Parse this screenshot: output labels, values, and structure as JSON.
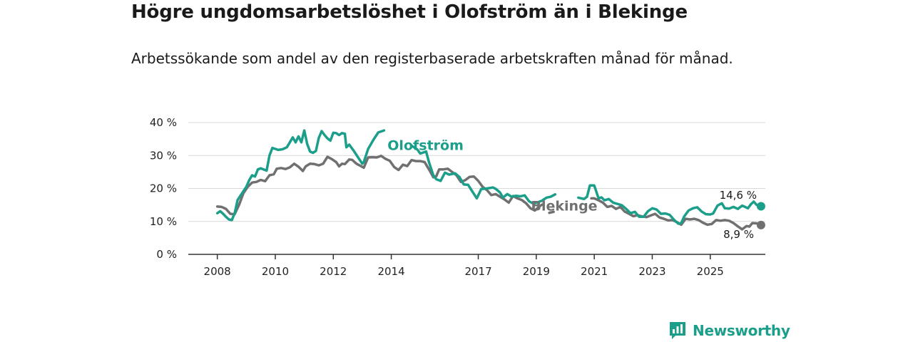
{
  "header": {
    "title": "Högre ungdomsarbetslöshet i Olofström än i Blekinge",
    "subtitle": "Arbetssökande som andel av den registerbaserade arbetskraften månad för månad."
  },
  "brand": {
    "name": "Newsworthy"
  },
  "colors": {
    "olofstrom": "#1b9e8a",
    "blekinge": "#707070",
    "grid": "#d9d9d9",
    "axis": "#333333"
  },
  "chart_data": {
    "type": "line",
    "title": "Högre ungdomsarbetslöshet i Olofström än i Blekinge",
    "xlabel": "",
    "ylabel": "",
    "xlim": [
      2007,
      2026.9
    ],
    "ylim": [
      0,
      40
    ],
    "y_ticks": [
      0,
      10,
      20,
      30,
      40
    ],
    "y_tick_labels": [
      "0 %",
      "10 %",
      "20 %",
      "30 %",
      "40 %"
    ],
    "x_ticks": [
      2008,
      2010,
      2012,
      2014,
      2017,
      2019,
      2021,
      2023,
      2025
    ],
    "x_tick_labels": [
      "2008",
      "2010",
      "2012",
      "2014",
      "2017",
      "2019",
      "2021",
      "2023",
      "2025"
    ],
    "grid": "horizontal",
    "series": [
      {
        "name": "Olofström",
        "label": "Olofström",
        "end_label": "14,6 %",
        "end_value": 14.6,
        "points": [
          [
            2008.0,
            12.5
          ],
          [
            2008.1,
            13.1
          ],
          [
            2008.2,
            12.3
          ],
          [
            2008.3,
            11.4
          ],
          [
            2008.4,
            10.6
          ],
          [
            2008.5,
            10.4
          ],
          [
            2008.6,
            12.5
          ],
          [
            2008.7,
            16.5
          ],
          [
            2008.85,
            18.5
          ],
          [
            2009.0,
            20.5
          ],
          [
            2009.1,
            22.5
          ],
          [
            2009.2,
            24.0
          ],
          [
            2009.3,
            23.6
          ],
          [
            2009.4,
            25.8
          ],
          [
            2009.5,
            26.1
          ],
          [
            2009.7,
            25.4
          ],
          [
            2009.8,
            30.0
          ],
          [
            2009.9,
            32.3
          ],
          [
            2010.0,
            32.0
          ],
          [
            2010.1,
            31.7
          ],
          [
            2010.25,
            31.9
          ],
          [
            2010.4,
            32.5
          ],
          [
            2010.5,
            34.0
          ],
          [
            2010.6,
            35.5
          ],
          [
            2010.7,
            34.0
          ],
          [
            2010.8,
            35.8
          ],
          [
            2010.9,
            34.0
          ],
          [
            2011.0,
            37.6
          ],
          [
            2011.1,
            33.5
          ],
          [
            2011.2,
            31.2
          ],
          [
            2011.3,
            30.8
          ],
          [
            2011.4,
            31.4
          ],
          [
            2011.5,
            35.3
          ],
          [
            2011.6,
            37.4
          ],
          [
            2011.7,
            36.2
          ],
          [
            2011.8,
            35.2
          ],
          [
            2011.9,
            34.5
          ],
          [
            2012.0,
            36.9
          ],
          [
            2012.1,
            36.8
          ],
          [
            2012.2,
            36.2
          ],
          [
            2012.3,
            36.8
          ],
          [
            2012.4,
            36.6
          ],
          [
            2012.45,
            32.5
          ],
          [
            2012.55,
            33.3
          ],
          [
            2012.7,
            31.5
          ],
          [
            2012.85,
            29.5
          ],
          [
            2013.0,
            27.5
          ],
          [
            2013.05,
            28.0
          ],
          [
            2013.2,
            32.0
          ],
          [
            2013.4,
            35.0
          ],
          [
            2013.55,
            37.0
          ],
          [
            2013.75,
            37.6
          ],
          [
            2013.78,
            null
          ],
          [
            2014.65,
            null
          ],
          [
            2014.7,
            33.0
          ],
          [
            2014.9,
            31.8
          ],
          [
            2015.0,
            30.6
          ],
          [
            2015.2,
            31.2
          ],
          [
            2015.3,
            28.0
          ],
          [
            2015.45,
            24.0
          ],
          [
            2015.55,
            22.8
          ],
          [
            2015.7,
            22.3
          ],
          [
            2015.85,
            24.8
          ],
          [
            2016.0,
            24.2
          ],
          [
            2016.2,
            24.6
          ],
          [
            2016.35,
            23.5
          ],
          [
            2016.5,
            21.2
          ],
          [
            2016.65,
            21.1
          ],
          [
            2016.8,
            19.0
          ],
          [
            2016.95,
            17.0
          ],
          [
            2017.1,
            19.8
          ],
          [
            2017.3,
            20.0
          ],
          [
            2017.5,
            20.3
          ],
          [
            2017.6,
            19.9
          ],
          [
            2017.75,
            18.8
          ],
          [
            2017.85,
            17.2
          ],
          [
            2018.0,
            18.3
          ],
          [
            2018.15,
            17.5
          ],
          [
            2018.3,
            17.8
          ],
          [
            2018.45,
            17.6
          ],
          [
            2018.6,
            17.9
          ],
          [
            2018.75,
            16.1
          ],
          [
            2018.9,
            15.4
          ],
          [
            2019.05,
            15.8
          ],
          [
            2019.2,
            16.3
          ],
          [
            2019.35,
            17.2
          ],
          [
            2019.5,
            17.5
          ],
          [
            2019.65,
            18.2
          ],
          [
            2019.7,
            null
          ],
          [
            2020.4,
            null
          ],
          [
            2020.45,
            17.2
          ],
          [
            2020.65,
            16.8
          ],
          [
            2020.75,
            17.5
          ],
          [
            2020.85,
            20.9
          ],
          [
            2021.0,
            20.9
          ],
          [
            2021.15,
            17.0
          ],
          [
            2021.25,
            17.3
          ],
          [
            2021.35,
            16.4
          ],
          [
            2021.5,
            16.8
          ],
          [
            2021.65,
            15.7
          ],
          [
            2021.8,
            15.3
          ],
          [
            2021.95,
            14.9
          ],
          [
            2022.1,
            13.8
          ],
          [
            2022.25,
            12.5
          ],
          [
            2022.4,
            12.9
          ],
          [
            2022.55,
            11.4
          ],
          [
            2022.7,
            11.4
          ],
          [
            2022.85,
            13.1
          ],
          [
            2023.0,
            14.0
          ],
          [
            2023.15,
            13.6
          ],
          [
            2023.3,
            12.3
          ],
          [
            2023.45,
            12.4
          ],
          [
            2023.6,
            12.0
          ],
          [
            2023.75,
            10.5
          ],
          [
            2023.9,
            9.3
          ],
          [
            2024.0,
            9.5
          ],
          [
            2024.1,
            11.5
          ],
          [
            2024.25,
            13.3
          ],
          [
            2024.4,
            14.0
          ],
          [
            2024.55,
            14.3
          ],
          [
            2024.7,
            13.0
          ],
          [
            2024.85,
            12.2
          ],
          [
            2025.0,
            12.1
          ],
          [
            2025.1,
            12.4
          ],
          [
            2025.25,
            14.8
          ],
          [
            2025.4,
            15.5
          ],
          [
            2025.5,
            14.0
          ],
          [
            2025.65,
            13.9
          ],
          [
            2025.8,
            14.4
          ],
          [
            2025.95,
            13.8
          ],
          [
            2026.1,
            14.8
          ],
          [
            2026.2,
            14.4
          ],
          [
            2026.3,
            14.0
          ],
          [
            2026.4,
            15.2
          ],
          [
            2026.5,
            16.0
          ],
          [
            2026.6,
            15.0
          ],
          [
            2026.75,
            14.6
          ]
        ]
      },
      {
        "name": "Blekinge",
        "label": "Blekinge",
        "end_label": "8,9 %",
        "end_value": 8.9,
        "points": [
          [
            2008.0,
            14.5
          ],
          [
            2008.15,
            14.4
          ],
          [
            2008.3,
            13.8
          ],
          [
            2008.45,
            12.3
          ],
          [
            2008.6,
            12.2
          ],
          [
            2008.75,
            15.0
          ],
          [
            2008.9,
            18.5
          ],
          [
            2009.05,
            20.5
          ],
          [
            2009.2,
            21.8
          ],
          [
            2009.35,
            22.0
          ],
          [
            2009.5,
            22.6
          ],
          [
            2009.65,
            22.2
          ],
          [
            2009.8,
            24.0
          ],
          [
            2009.95,
            24.3
          ],
          [
            2010.05,
            26.0
          ],
          [
            2010.2,
            26.2
          ],
          [
            2010.35,
            25.9
          ],
          [
            2010.5,
            26.4
          ],
          [
            2010.65,
            27.5
          ],
          [
            2010.8,
            26.6
          ],
          [
            2010.95,
            25.3
          ],
          [
            2011.05,
            26.7
          ],
          [
            2011.2,
            27.5
          ],
          [
            2011.35,
            27.4
          ],
          [
            2011.5,
            27.0
          ],
          [
            2011.65,
            27.5
          ],
          [
            2011.8,
            29.6
          ],
          [
            2011.95,
            28.9
          ],
          [
            2012.1,
            28.0
          ],
          [
            2012.2,
            26.7
          ],
          [
            2012.3,
            27.5
          ],
          [
            2012.4,
            27.4
          ],
          [
            2012.55,
            28.8
          ],
          [
            2012.65,
            28.7
          ],
          [
            2012.8,
            27.5
          ],
          [
            2012.95,
            26.8
          ],
          [
            2013.05,
            26.3
          ],
          [
            2013.2,
            29.4
          ],
          [
            2013.35,
            29.5
          ],
          [
            2013.5,
            29.4
          ],
          [
            2013.65,
            29.9
          ],
          [
            2013.8,
            29.0
          ],
          [
            2013.95,
            28.4
          ],
          [
            2014.1,
            26.5
          ],
          [
            2014.25,
            25.6
          ],
          [
            2014.4,
            27.2
          ],
          [
            2014.55,
            26.8
          ],
          [
            2014.7,
            28.6
          ],
          [
            2014.85,
            28.3
          ],
          [
            2015.0,
            28.3
          ],
          [
            2015.15,
            28.0
          ],
          [
            2015.3,
            25.8
          ],
          [
            2015.45,
            23.4
          ],
          [
            2015.55,
            23.7
          ],
          [
            2015.65,
            25.8
          ],
          [
            2015.8,
            25.8
          ],
          [
            2015.95,
            26.0
          ],
          [
            2016.1,
            25.0
          ],
          [
            2016.25,
            24.0
          ],
          [
            2016.4,
            22.0
          ],
          [
            2016.55,
            22.5
          ],
          [
            2016.7,
            23.5
          ],
          [
            2016.85,
            23.6
          ],
          [
            2017.0,
            22.3
          ],
          [
            2017.15,
            20.5
          ],
          [
            2017.3,
            19.5
          ],
          [
            2017.45,
            18.0
          ],
          [
            2017.6,
            18.3
          ],
          [
            2017.75,
            17.5
          ],
          [
            2017.9,
            16.7
          ],
          [
            2018.05,
            15.7
          ],
          [
            2018.2,
            17.7
          ],
          [
            2018.35,
            17.0
          ],
          [
            2018.5,
            16.5
          ],
          [
            2018.65,
            15.5
          ],
          [
            2018.8,
            14.0
          ],
          [
            2018.95,
            13.3
          ],
          [
            2019.1,
            14.5
          ],
          [
            2019.2,
            15.1
          ],
          [
            2019.25,
            null
          ],
          [
            2019.4,
            null
          ],
          [
            2019.45,
            12.6
          ],
          [
            2019.6,
            12.9
          ],
          [
            2019.75,
            null
          ],
          [
            2020.85,
            null
          ],
          [
            2020.9,
            17.0
          ],
          [
            2021.0,
            17.0
          ],
          [
            2021.15,
            16.4
          ],
          [
            2021.3,
            15.7
          ],
          [
            2021.45,
            14.4
          ],
          [
            2021.6,
            14.7
          ],
          [
            2021.75,
            13.8
          ],
          [
            2021.9,
            14.4
          ],
          [
            2022.05,
            13.0
          ],
          [
            2022.2,
            12.3
          ],
          [
            2022.35,
            11.6
          ],
          [
            2022.5,
            11.9
          ],
          [
            2022.65,
            11.5
          ],
          [
            2022.8,
            11.3
          ],
          [
            2022.95,
            11.8
          ],
          [
            2023.1,
            12.3
          ],
          [
            2023.25,
            11.2
          ],
          [
            2023.4,
            10.8
          ],
          [
            2023.55,
            10.3
          ],
          [
            2023.7,
            10.4
          ],
          [
            2023.85,
            9.8
          ],
          [
            2024.0,
            9.0
          ],
          [
            2024.15,
            10.8
          ],
          [
            2024.3,
            10.6
          ],
          [
            2024.45,
            10.8
          ],
          [
            2024.6,
            10.4
          ],
          [
            2024.75,
            9.6
          ],
          [
            2024.9,
            9.0
          ],
          [
            2025.05,
            9.2
          ],
          [
            2025.2,
            10.4
          ],
          [
            2025.35,
            10.2
          ],
          [
            2025.5,
            10.4
          ],
          [
            2025.65,
            10.2
          ],
          [
            2025.8,
            9.5
          ],
          [
            2025.95,
            8.5
          ],
          [
            2026.1,
            7.6
          ],
          [
            2026.25,
            8.6
          ],
          [
            2026.35,
            8.4
          ],
          [
            2026.45,
            9.5
          ],
          [
            2026.6,
            9.4
          ],
          [
            2026.75,
            8.9
          ]
        ]
      }
    ]
  }
}
